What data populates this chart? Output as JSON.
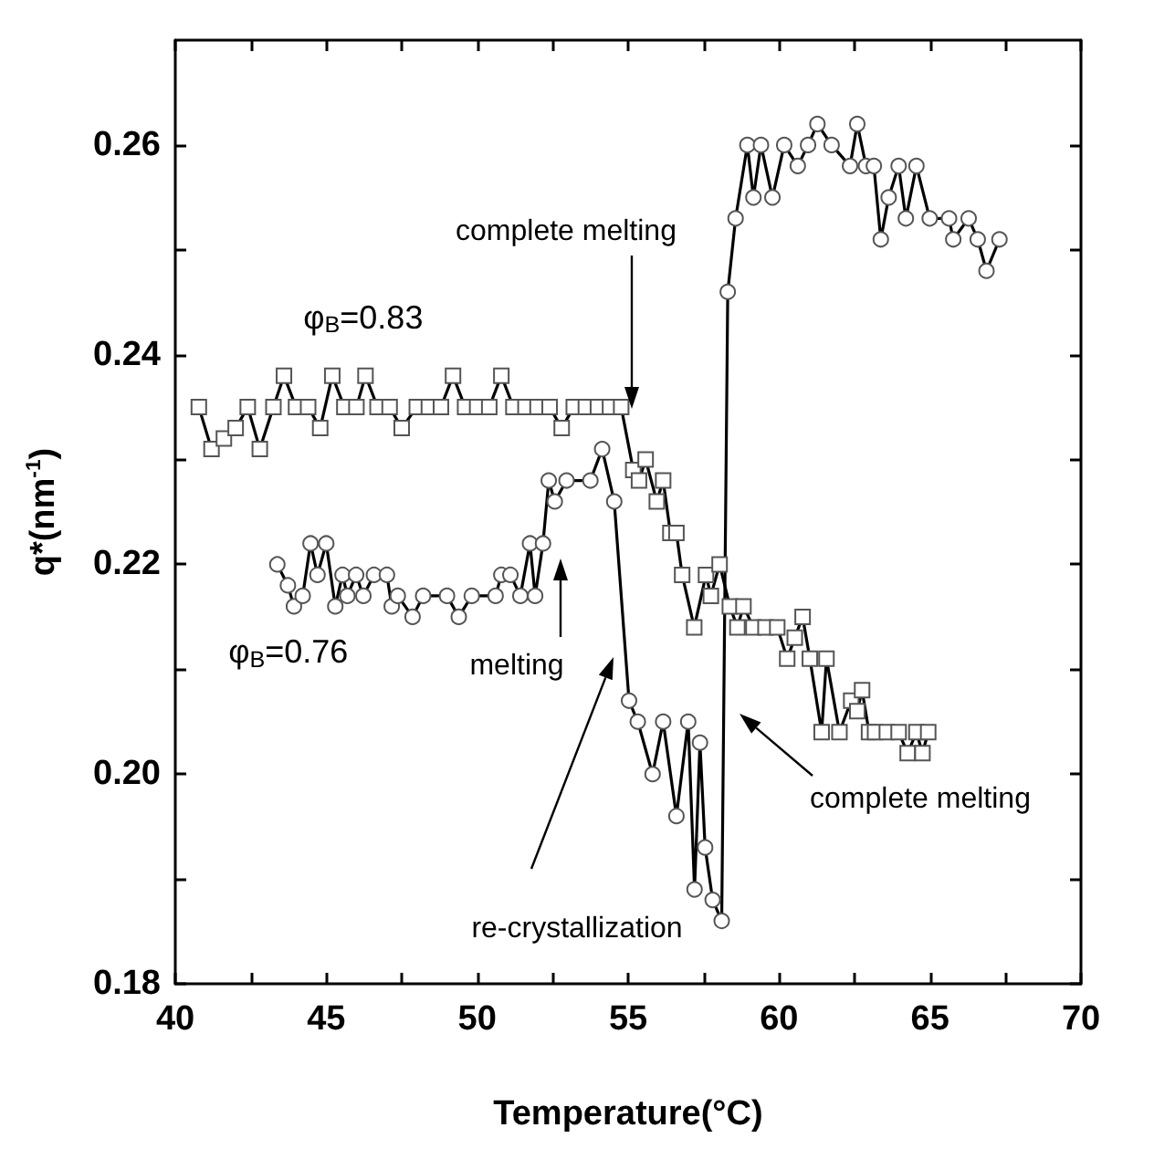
{
  "chart_data": {
    "type": "line",
    "xlabel": "Temperature(°C)",
    "ylabel": "q*(nm$^{-1}$)",
    "xlim": [
      40,
      70
    ],
    "xticks": [
      40,
      {
        "value": 42.5,
        "label": null
      },
      45,
      {
        "value": 47.5,
        "label": null
      },
      50,
      {
        "value": 52.5,
        "label": null
      },
      55,
      {
        "value": 57.5,
        "label": null
      },
      60,
      {
        "value": 62.5,
        "label": null
      },
      65,
      {
        "value": 67.5,
        "label": null
      },
      70
    ],
    "ylim": [
      0.18,
      0.27
    ],
    "yticks": [
      {
        "value": 0.18,
        "label": "0.18"
      },
      {
        "value": 0.19,
        "label": null
      },
      {
        "value": 0.2,
        "label": "0.20"
      },
      {
        "value": 0.21,
        "label": null
      },
      {
        "value": 0.22,
        "label": "0.22"
      },
      {
        "value": 0.23,
        "label": null
      },
      {
        "value": 0.24,
        "label": "0.24"
      },
      {
        "value": 0.25,
        "label": null
      },
      {
        "value": 0.26,
        "label": "0.26"
      }
    ],
    "grid": false,
    "legend": false,
    "line_style": "solid",
    "series": [
      {
        "name": "φ$_{B}$=0.83",
        "color": "#000000",
        "marker": "square",
        "x": [
          40.78,
          41.2,
          41.61,
          42.0,
          42.4,
          42.8,
          43.25,
          43.6,
          44.0,
          44.4,
          44.8,
          45.2,
          45.6,
          46.0,
          46.3,
          46.7,
          47.1,
          47.5,
          48.0,
          48.4,
          48.8,
          49.2,
          49.6,
          50.0,
          50.4,
          50.8,
          51.2,
          51.6,
          52.0,
          52.4,
          52.8,
          53.2,
          53.6,
          54.0,
          54.4,
          54.77,
          55.17,
          55.36,
          55.58,
          55.95,
          56.16,
          56.4,
          56.6,
          56.79,
          57.19,
          57.58,
          57.74,
          58.03,
          58.37,
          58.62,
          58.82,
          59.15,
          59.55,
          59.94,
          60.27,
          60.52,
          60.78,
          61.02,
          61.41,
          61.57,
          62.0,
          62.39,
          62.59,
          62.75,
          62.98,
          63.18,
          63.57,
          63.96,
          64.26,
          64.55,
          64.75,
          64.94
        ],
        "values": [
          0.235,
          0.231,
          0.232,
          0.233,
          0.235,
          0.231,
          0.235,
          0.238,
          0.235,
          0.235,
          0.233,
          0.238,
          0.235,
          0.235,
          0.238,
          0.235,
          0.235,
          0.233,
          0.235,
          0.235,
          0.235,
          0.238,
          0.235,
          0.235,
          0.235,
          0.238,
          0.235,
          0.235,
          0.235,
          0.235,
          0.233,
          0.235,
          0.235,
          0.235,
          0.235,
          0.235,
          0.229,
          0.228,
          0.23,
          0.226,
          0.228,
          0.223,
          0.223,
          0.219,
          0.214,
          0.219,
          0.217,
          0.22,
          0.216,
          0.214,
          0.216,
          0.214,
          0.214,
          0.214,
          0.211,
          0.213,
          0.215,
          0.211,
          0.204,
          0.211,
          0.204,
          0.207,
          0.206,
          0.208,
          0.204,
          0.204,
          0.204,
          0.204,
          0.202,
          0.204,
          0.202,
          0.204
        ]
      },
      {
        "name": "φ$_{B}$=0.76",
        "color": "#000000",
        "marker": "circle",
        "x": [
          43.38,
          43.73,
          43.93,
          44.22,
          44.48,
          44.71,
          45.0,
          45.3,
          45.54,
          45.7,
          45.99,
          46.23,
          46.58,
          47.01,
          47.17,
          47.37,
          47.86,
          48.21,
          49.0,
          49.39,
          49.82,
          50.61,
          50.8,
          51.1,
          51.43,
          51.75,
          51.92,
          52.18,
          52.37,
          52.57,
          52.96,
          53.75,
          54.14,
          54.54,
          55.03,
          55.32,
          55.81,
          56.16,
          56.6,
          56.99,
          57.2,
          57.38,
          57.55,
          57.8,
          58.1,
          58.3,
          58.56,
          58.95,
          59.15,
          59.4,
          59.78,
          60.17,
          60.62,
          60.96,
          61.27,
          61.74,
          62.35,
          62.59,
          62.88,
          63.14,
          63.37,
          63.63,
          63.96,
          64.2,
          64.55,
          64.99,
          65.63,
          65.77,
          66.28,
          66.58,
          66.87,
          67.3
        ],
        "values": [
          0.22,
          0.218,
          0.216,
          0.217,
          0.222,
          0.219,
          0.222,
          0.216,
          0.219,
          0.217,
          0.219,
          0.217,
          0.219,
          0.219,
          0.216,
          0.217,
          0.215,
          0.217,
          0.217,
          0.215,
          0.217,
          0.217,
          0.219,
          0.219,
          0.217,
          0.222,
          0.217,
          0.222,
          0.228,
          0.226,
          0.228,
          0.228,
          0.231,
          0.226,
          0.207,
          0.205,
          0.2,
          0.205,
          0.196,
          0.205,
          0.189,
          0.203,
          0.193,
          0.188,
          0.186,
          0.246,
          0.253,
          0.26,
          0.255,
          0.26,
          0.255,
          0.26,
          0.258,
          0.26,
          0.262,
          0.26,
          0.258,
          0.262,
          0.258,
          0.258,
          0.251,
          0.255,
          0.258,
          0.253,
          0.258,
          0.253,
          0.253,
          0.251,
          0.253,
          0.251,
          0.248,
          0.251
        ]
      }
    ],
    "annotations": [
      "complete melting",
      "melting",
      "re-crystallization",
      "complete melting"
    ]
  }
}
